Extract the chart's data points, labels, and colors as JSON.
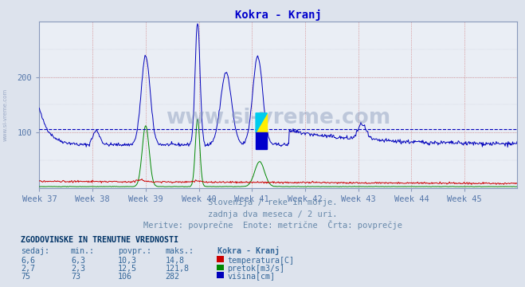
{
  "title": "Kokra - Kranj",
  "title_color": "#0000cc",
  "bg_color": "#dde3ed",
  "plot_bg_color": "#eaeef5",
  "x_tick_labels": [
    "Week 37",
    "Week 38",
    "Week 39",
    "Week 40",
    "Week 41",
    "Week 42",
    "Week 43",
    "Week 44",
    "Week 45"
  ],
  "ylim": [
    0,
    300
  ],
  "yticks": [
    100,
    200
  ],
  "num_points": 756,
  "avg_line_value": 106,
  "avg_line_color": "#0000bb",
  "temp_color": "#cc0000",
  "flow_color": "#008800",
  "height_color": "#0000bb",
  "logo_text": "www.si-vreme.com",
  "logo_color": "#8899bb",
  "side_text": "www.si-vreme.com",
  "side_color": "#8899bb",
  "subtitle1": "Slovenija / reke in morje.",
  "subtitle2": "zadnja dva meseca / 2 uri.",
  "subtitle3": "Meritve: povprečne  Enote: metrične  Črta: povprečje",
  "subtitle_color": "#6688aa",
  "table_header": "ZGODOVINSKE IN TRENUTNE VREDNOSTI",
  "col_headers": [
    "sedaj:",
    "min.:",
    "povpr.:",
    "maks.:",
    "Kokra - Kranj"
  ],
  "row1": [
    "6,6",
    "6,3",
    "10,3",
    "14,8",
    "temperatura[C]"
  ],
  "row2": [
    "2,7",
    "2,3",
    "12,5",
    "121,8",
    "pretok[m3/s]"
  ],
  "row3": [
    "75",
    "73",
    "106",
    "282",
    "višina[cm]"
  ],
  "table_color": "#336699",
  "table_header_color": "#003366",
  "tick_color": "#5577aa"
}
